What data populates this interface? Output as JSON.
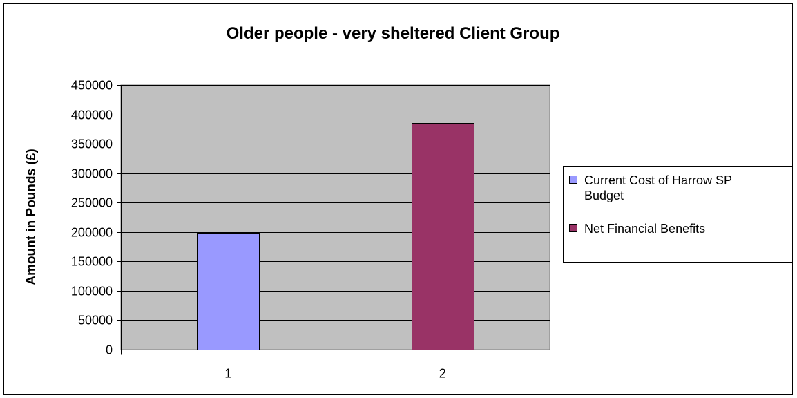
{
  "chart_data": {
    "type": "bar",
    "title": "Older people - very sheltered Client Group",
    "xlabel": "",
    "ylabel": "Amount in Pounds (£)",
    "categories": [
      "1",
      "2"
    ],
    "series": [
      {
        "name": "Current Cost of Harrow SP Budget",
        "color": "#9999ff",
        "values": [
          198000,
          null
        ]
      },
      {
        "name": "Net Financial Benefits",
        "color": "#993366",
        "values": [
          null,
          385000
        ]
      }
    ],
    "ylim": [
      0,
      450000
    ],
    "yticks": [
      0,
      50000,
      100000,
      150000,
      200000,
      250000,
      300000,
      350000,
      400000,
      450000
    ],
    "grid": true,
    "legend_position": "right",
    "plot_background": "#c0c0c0"
  }
}
